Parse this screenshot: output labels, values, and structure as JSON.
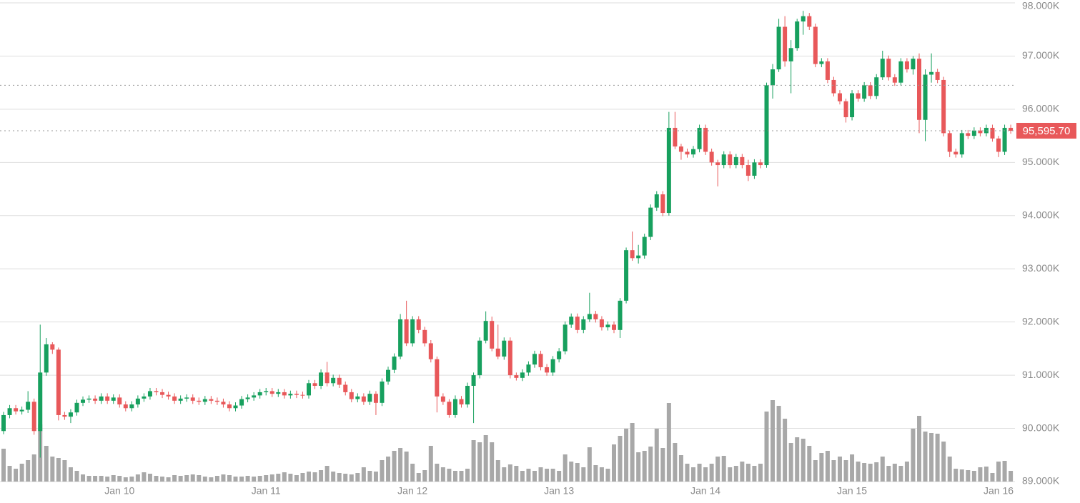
{
  "chart_data": {
    "type": "candlestick",
    "categories": [
      null,
      null,
      null,
      null,
      null,
      null,
      null,
      null,
      null,
      null,
      null,
      null,
      null,
      null,
      null,
      null,
      null,
      null,
      null,
      "Jan 10",
      null,
      null,
      null,
      null,
      null,
      null,
      null,
      null,
      null,
      null,
      null,
      null,
      null,
      null,
      null,
      null,
      null,
      null,
      null,
      null,
      null,
      null,
      null,
      "Jan 11",
      null,
      null,
      null,
      null,
      null,
      null,
      null,
      null,
      null,
      null,
      null,
      null,
      null,
      null,
      null,
      null,
      null,
      null,
      null,
      null,
      null,
      null,
      null,
      "Jan 12",
      null,
      null,
      null,
      null,
      null,
      null,
      null,
      null,
      null,
      null,
      null,
      null,
      null,
      null,
      null,
      null,
      null,
      null,
      null,
      null,
      null,
      null,
      null,
      "Jan 13",
      null,
      null,
      null,
      null,
      null,
      null,
      null,
      null,
      null,
      null,
      null,
      null,
      null,
      null,
      null,
      null,
      null,
      null,
      null,
      null,
      null,
      null,
      null,
      "Jan 14",
      null,
      null,
      null,
      null,
      null,
      null,
      null,
      null,
      null,
      null,
      null,
      null,
      null,
      null,
      null,
      null,
      null,
      null,
      null,
      null,
      null,
      null,
      null,
      "Jan 15",
      null,
      null,
      null,
      null,
      null,
      null,
      null,
      null,
      null,
      null,
      null,
      null,
      null,
      null,
      null,
      null,
      null,
      null,
      null,
      null,
      null,
      null,
      null,
      "Jan 16",
      null,
      null
    ],
    "candles": [
      [
        89950,
        90310,
        89890,
        90250
      ],
      [
        90250,
        90440,
        90190,
        90380
      ],
      [
        90380,
        90440,
        90260,
        90320
      ],
      [
        90320,
        90410,
        90260,
        90350
      ],
      [
        90350,
        90700,
        90290,
        90500
      ],
      [
        90500,
        90560,
        89880,
        89950
      ],
      [
        89950,
        91950,
        89450,
        91050
      ],
      [
        91050,
        91700,
        90990,
        91580
      ],
      [
        91580,
        91620,
        91400,
        91480
      ],
      [
        91480,
        91520,
        90150,
        90250
      ],
      [
        90250,
        90310,
        90160,
        90220
      ],
      [
        90220,
        90360,
        90100,
        90300
      ],
      [
        90300,
        90540,
        90240,
        90480
      ],
      [
        90480,
        90600,
        90420,
        90540
      ],
      [
        90540,
        90620,
        90480,
        90560
      ],
      [
        90560,
        90620,
        90460,
        90520
      ],
      [
        90520,
        90660,
        90460,
        90600
      ],
      [
        90600,
        90660,
        90460,
        90520
      ],
      [
        90520,
        90640,
        90460,
        90580
      ],
      [
        90580,
        90640,
        90390,
        90450
      ],
      [
        90450,
        90510,
        90320,
        90380
      ],
      [
        90380,
        90510,
        90320,
        90450
      ],
      [
        90450,
        90620,
        90390,
        90560
      ],
      [
        90560,
        90660,
        90500,
        90600
      ],
      [
        90600,
        90760,
        90540,
        90700
      ],
      [
        90700,
        90760,
        90620,
        90680
      ],
      [
        90680,
        90740,
        90570,
        90630
      ],
      [
        90630,
        90690,
        90540,
        90600
      ],
      [
        90600,
        90660,
        90460,
        90520
      ],
      [
        90520,
        90620,
        90460,
        90560
      ],
      [
        90560,
        90640,
        90500,
        90580
      ],
      [
        90580,
        90640,
        90460,
        90520
      ],
      [
        90520,
        90580,
        90440,
        90500
      ],
      [
        90500,
        90610,
        90440,
        90550
      ],
      [
        90550,
        90610,
        90460,
        90520
      ],
      [
        90520,
        90580,
        90440,
        90500
      ],
      [
        90500,
        90560,
        90390,
        90450
      ],
      [
        90450,
        90510,
        90320,
        90380
      ],
      [
        90380,
        90490,
        90320,
        90430
      ],
      [
        90430,
        90610,
        90370,
        90550
      ],
      [
        90550,
        90640,
        90490,
        90580
      ],
      [
        90580,
        90680,
        90520,
        90620
      ],
      [
        90620,
        90740,
        90560,
        90680
      ],
      [
        90680,
        90760,
        90620,
        90700
      ],
      [
        90700,
        90760,
        90590,
        90650
      ],
      [
        90650,
        90740,
        90590,
        90680
      ],
      [
        90680,
        90740,
        90560,
        90620
      ],
      [
        90620,
        90710,
        90560,
        90650
      ],
      [
        90650,
        90710,
        90570,
        90630
      ],
      [
        90630,
        90690,
        90560,
        90620
      ],
      [
        90620,
        90910,
        90560,
        90850
      ],
      [
        90850,
        90910,
        90740,
        90800
      ],
      [
        90800,
        91110,
        90740,
        91050
      ],
      [
        91050,
        91250,
        90790,
        90850
      ],
      [
        90850,
        91010,
        90790,
        90950
      ],
      [
        90950,
        91010,
        90760,
        90820
      ],
      [
        90820,
        90880,
        90620,
        90680
      ],
      [
        90680,
        90740,
        90490,
        90550
      ],
      [
        90550,
        90660,
        90490,
        90600
      ],
      [
        90600,
        90660,
        90440,
        90500
      ],
      [
        90500,
        90710,
        90440,
        90650
      ],
      [
        90650,
        90700,
        90250,
        90480
      ],
      [
        90480,
        90940,
        90420,
        90880
      ],
      [
        90880,
        91160,
        90820,
        91100
      ],
      [
        91100,
        91410,
        91040,
        91350
      ],
      [
        91350,
        92150,
        91300,
        92050
      ],
      [
        92050,
        92400,
        91550,
        91600
      ],
      [
        91600,
        92110,
        91540,
        92050
      ],
      [
        92050,
        92110,
        91790,
        91850
      ],
      [
        91850,
        91910,
        91540,
        91600
      ],
      [
        91600,
        91660,
        91240,
        91300
      ],
      [
        91300,
        91350,
        90300,
        90600
      ],
      [
        90600,
        90660,
        90440,
        90500
      ],
      [
        90500,
        90550,
        90200,
        90250
      ],
      [
        90250,
        90620,
        90200,
        90550
      ],
      [
        90550,
        90610,
        90390,
        90450
      ],
      [
        90450,
        90860,
        90390,
        90800
      ],
      [
        90800,
        91050,
        90100,
        91000
      ],
      [
        91000,
        91710,
        90940,
        91650
      ],
      [
        91650,
        92200,
        91600,
        92020
      ],
      [
        92020,
        92100,
        91450,
        91500
      ],
      [
        91500,
        91950,
        91300,
        91350
      ],
      [
        91350,
        91710,
        91290,
        91650
      ],
      [
        91650,
        91710,
        90940,
        91000
      ],
      [
        91000,
        91050,
        90900,
        90950
      ],
      [
        90950,
        91110,
        90890,
        91050
      ],
      [
        91050,
        91260,
        90990,
        91200
      ],
      [
        91200,
        91460,
        91140,
        91400
      ],
      [
        91400,
        91460,
        91090,
        91150
      ],
      [
        91150,
        91210,
        90990,
        91050
      ],
      [
        91050,
        91360,
        90990,
        91300
      ],
      [
        91300,
        91510,
        91240,
        91450
      ],
      [
        91450,
        92010,
        91390,
        91950
      ],
      [
        91950,
        92160,
        91890,
        92100
      ],
      [
        92100,
        92160,
        91790,
        91850
      ],
      [
        91850,
        92110,
        91790,
        92050
      ],
      [
        92050,
        92550,
        92000,
        92150
      ],
      [
        92150,
        92210,
        91990,
        92050
      ],
      [
        92050,
        92110,
        91840,
        91900
      ],
      [
        91900,
        92010,
        91840,
        91950
      ],
      [
        91950,
        92010,
        91790,
        91850
      ],
      [
        91850,
        92450,
        91700,
        92400
      ],
      [
        92400,
        93400,
        92350,
        93350
      ],
      [
        93350,
        93700,
        93150,
        93200
      ],
      [
        93200,
        93450,
        93100,
        93250
      ],
      [
        93250,
        93660,
        93190,
        93600
      ],
      [
        93600,
        94210,
        93540,
        94150
      ],
      [
        94150,
        94460,
        94090,
        94400
      ],
      [
        94400,
        94460,
        93990,
        94050
      ],
      [
        94050,
        95950,
        94000,
        95650
      ],
      [
        95650,
        95950,
        95250,
        95300
      ],
      [
        95300,
        95350,
        95050,
        95200
      ],
      [
        95200,
        95260,
        95090,
        95150
      ],
      [
        95150,
        95310,
        95090,
        95250
      ],
      [
        95250,
        95710,
        95190,
        95650
      ],
      [
        95650,
        95710,
        95140,
        95200
      ],
      [
        95200,
        95260,
        94940,
        95000
      ],
      [
        95000,
        95050,
        94550,
        94950
      ],
      [
        94950,
        95210,
        94890,
        95150
      ],
      [
        95150,
        95210,
        94890,
        94950
      ],
      [
        94950,
        95160,
        94890,
        95100
      ],
      [
        95100,
        95160,
        94890,
        94950
      ],
      [
        94950,
        95050,
        94650,
        94750
      ],
      [
        94750,
        95060,
        94690,
        95000
      ],
      [
        95000,
        95060,
        94890,
        94950
      ],
      [
        94950,
        96500,
        94900,
        96450
      ],
      [
        96450,
        96850,
        96200,
        96750
      ],
      [
        96750,
        97700,
        96700,
        97550
      ],
      [
        97550,
        97750,
        96800,
        96900
      ],
      [
        96900,
        97300,
        96300,
        97150
      ],
      [
        97150,
        97700,
        97100,
        97650
      ],
      [
        97650,
        97850,
        97400,
        97750
      ],
      [
        97750,
        97810,
        97490,
        97550
      ],
      [
        97550,
        97610,
        96790,
        96850
      ],
      [
        96850,
        96960,
        96790,
        96900
      ],
      [
        96900,
        96960,
        96490,
        96550
      ],
      [
        96550,
        96610,
        96240,
        96300
      ],
      [
        96300,
        96360,
        96090,
        96150
      ],
      [
        96150,
        96200,
        95750,
        95850
      ],
      [
        95850,
        96360,
        95790,
        96300
      ],
      [
        96300,
        96360,
        96140,
        96200
      ],
      [
        96200,
        96510,
        96140,
        96450
      ],
      [
        96450,
        96510,
        96190,
        96250
      ],
      [
        96250,
        96660,
        96190,
        96600
      ],
      [
        96600,
        97100,
        96550,
        96950
      ],
      [
        96950,
        97010,
        96540,
        96600
      ],
      [
        96600,
        96660,
        96440,
        96500
      ],
      [
        96500,
        96960,
        96440,
        96900
      ],
      [
        96900,
        96960,
        96690,
        96750
      ],
      [
        96750,
        97000,
        96650,
        96950
      ],
      [
        96950,
        97050,
        95550,
        95800
      ],
      [
        95800,
        96750,
        95400,
        96650
      ],
      [
        96650,
        97050,
        96500,
        96700
      ],
      [
        96700,
        96760,
        96490,
        96550
      ],
      [
        96550,
        96610,
        95490,
        95550
      ],
      [
        95550,
        95600,
        95100,
        95200
      ],
      [
        95200,
        95260,
        95090,
        95150
      ],
      [
        95150,
        95610,
        95090,
        95550
      ],
      [
        95550,
        95610,
        95440,
        95500
      ],
      [
        95500,
        95660,
        95440,
        95600
      ],
      [
        95600,
        95660,
        95490,
        95550
      ],
      [
        95550,
        95710,
        95490,
        95650
      ],
      [
        95650,
        95710,
        95390,
        95450
      ],
      [
        95450,
        95500,
        95100,
        95200
      ],
      [
        95200,
        95710,
        95140,
        95650
      ],
      [
        95650,
        95710,
        95540,
        95595.7
      ]
    ],
    "volume": [
      46,
      22,
      18,
      25,
      30,
      38,
      80,
      50,
      35,
      33,
      30,
      20,
      15,
      10,
      8,
      8,
      8,
      7,
      9,
      8,
      6,
      7,
      10,
      13,
      11,
      8,
      7,
      6,
      9,
      8,
      9,
      10,
      9,
      7,
      6,
      8,
      10,
      9,
      7,
      7,
      8,
      7,
      8,
      9,
      10,
      11,
      13,
      11,
      9,
      12,
      14,
      13,
      16,
      22,
      14,
      12,
      11,
      10,
      12,
      20,
      15,
      14,
      30,
      35,
      43,
      47,
      42,
      25,
      12,
      16,
      50,
      25,
      20,
      18,
      15,
      15,
      18,
      58,
      55,
      65,
      55,
      30,
      20,
      24,
      22,
      15,
      18,
      15,
      20,
      18,
      18,
      15,
      38,
      28,
      26,
      20,
      48,
      23,
      20,
      18,
      52,
      64,
      74,
      82,
      41,
      43,
      49,
      74,
      47,
      110,
      54,
      37,
      25,
      20,
      25,
      20,
      25,
      35,
      36,
      20,
      22,
      28,
      25,
      22,
      25,
      98,
      114,
      106,
      88,
      54,
      62,
      60,
      50,
      30,
      40,
      43,
      30,
      35,
      30,
      38,
      28,
      26,
      25,
      27,
      35,
      22,
      25,
      22,
      28,
      74,
      92,
      70,
      68,
      67,
      56,
      35,
      18,
      17,
      16,
      15,
      20,
      21,
      12,
      28,
      29,
      15
    ],
    "ylim": [
      89000,
      98000
    ],
    "yticks": [
      {
        "value": 89000,
        "label": "89.000K"
      },
      {
        "value": 90000,
        "label": "90.000K"
      },
      {
        "value": 91000,
        "label": "91.000K"
      },
      {
        "value": 92000,
        "label": "92.000K"
      },
      {
        "value": 93000,
        "label": "93.000K"
      },
      {
        "value": 94000,
        "label": "94.000K"
      },
      {
        "value": 95000,
        "label": "95.000K"
      },
      {
        "value": 96000,
        "label": "96.000K"
      },
      {
        "value": 97000,
        "label": "97.000K"
      },
      {
        "value": 98000,
        "label": "98.000K"
      }
    ],
    "volume_lim": [
      0,
      120
    ],
    "grid": true,
    "up_color": "#17a05e",
    "down_color": "#e8585a",
    "volume_color": "#a8a8a8",
    "last_price": {
      "value": 95595.7,
      "label": "95,595.70"
    },
    "price_line": 96450
  }
}
